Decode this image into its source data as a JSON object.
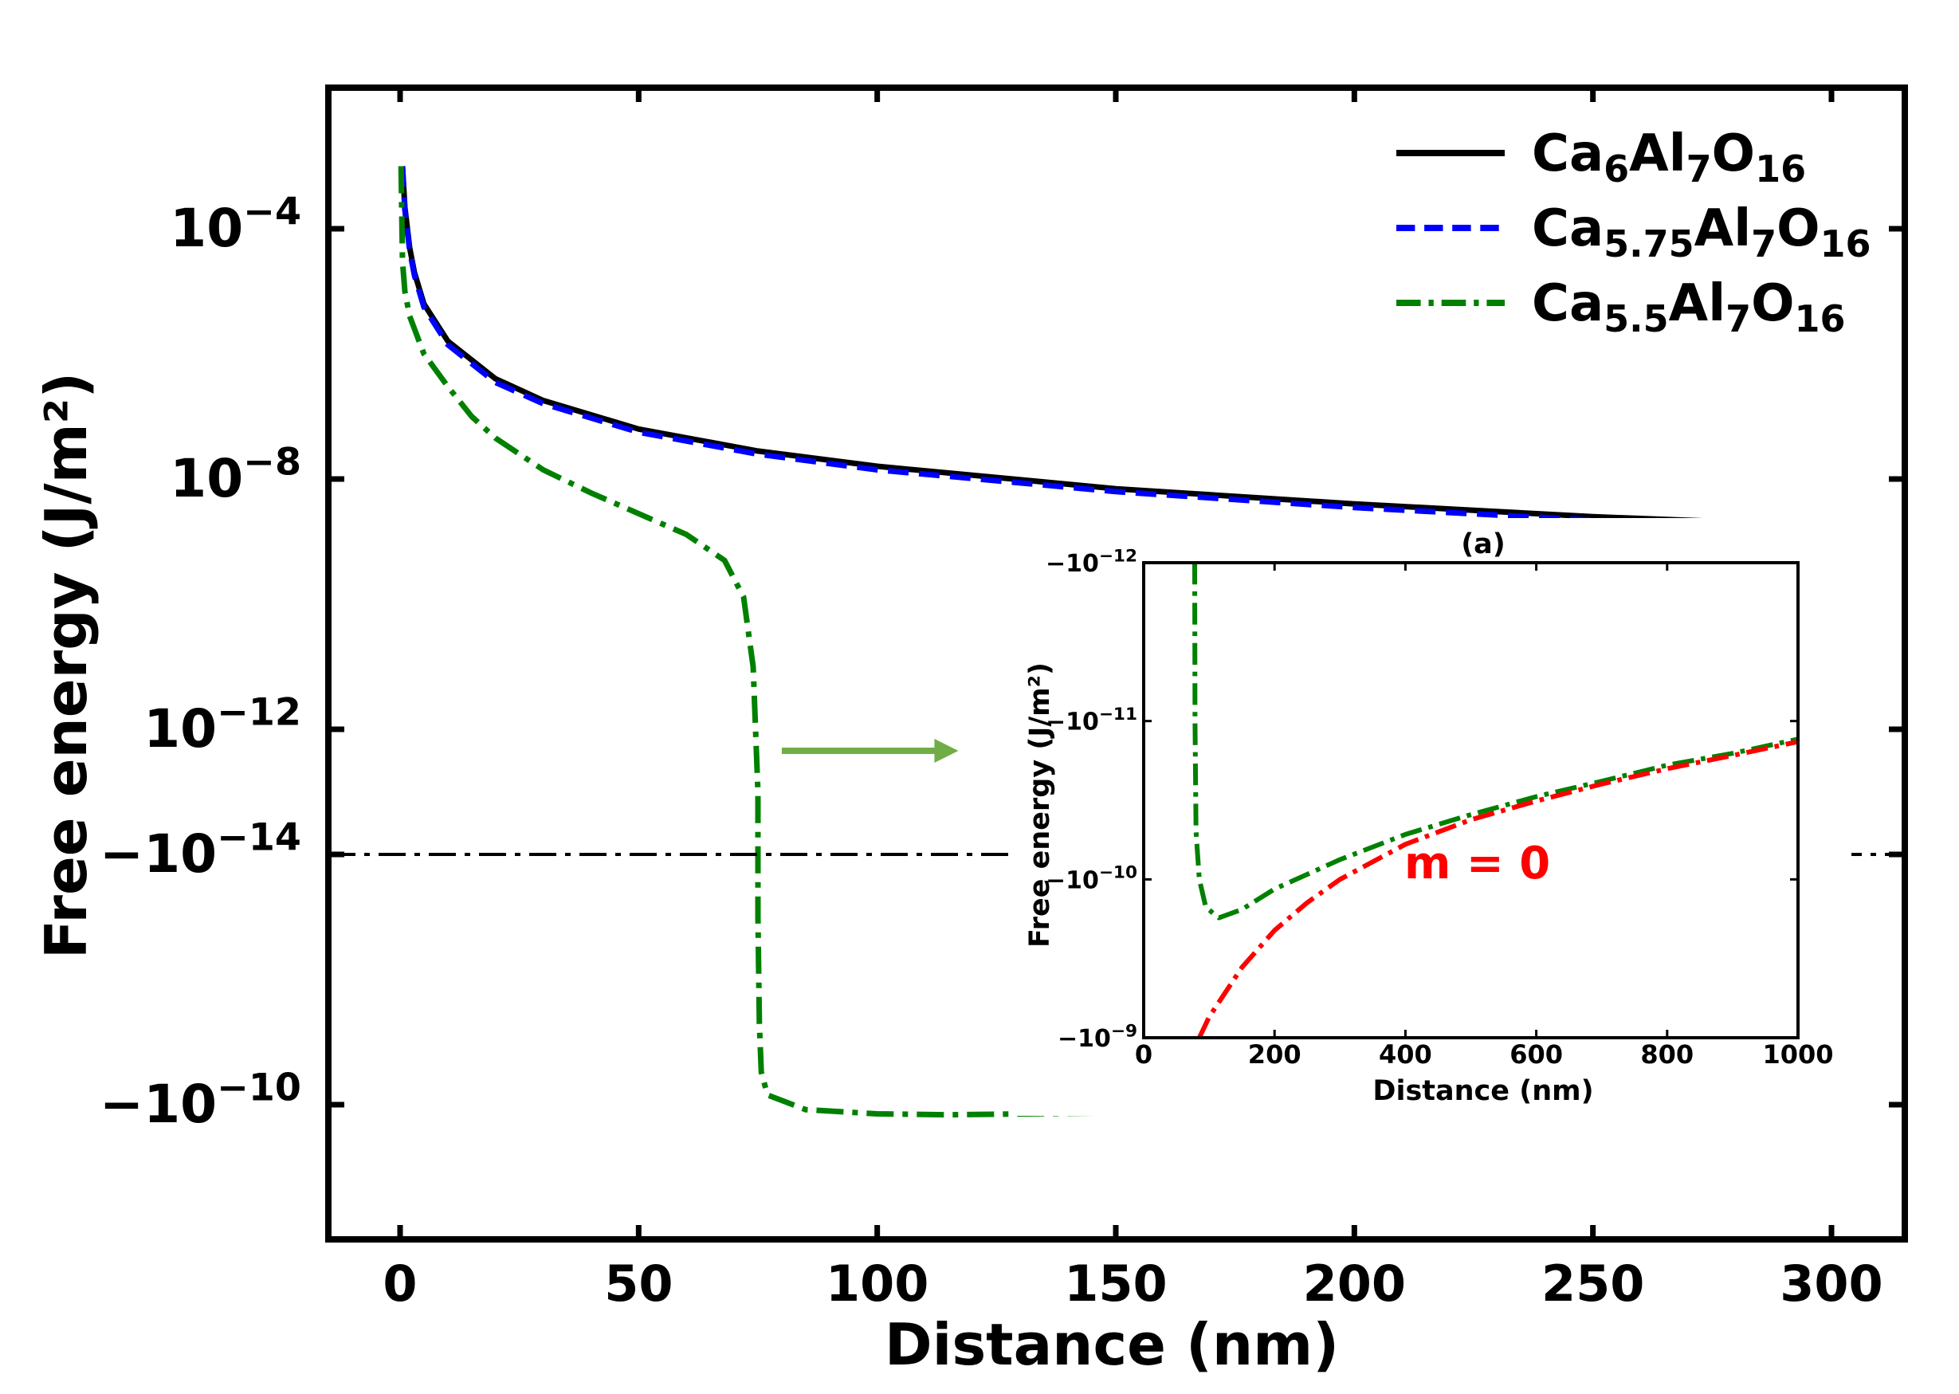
{
  "chart_data": [
    {
      "type": "line",
      "title": "",
      "xlabel": "Distance (nm)",
      "ylabel": "Free energy (J/m²)",
      "yscale": "symlog",
      "xlim": [
        -15,
        305
      ],
      "xticks": [
        {
          "value": 0,
          "label": "0"
        },
        {
          "value": 50,
          "label": "50"
        },
        {
          "value": 100,
          "label": "100"
        },
        {
          "value": 150,
          "label": "150"
        },
        {
          "value": 200,
          "label": "200"
        },
        {
          "value": 250,
          "label": "250"
        },
        {
          "value": 300,
          "label": "300"
        }
      ],
      "yticks": [
        {
          "value": 0.0001,
          "base": "10",
          "exp": "−4",
          "neg": false
        },
        {
          "value": 1e-08,
          "base": "10",
          "exp": "−8",
          "neg": false
        },
        {
          "value": 1e-12,
          "base": "10",
          "exp": "−12",
          "neg": false
        },
        {
          "value": -1e-14,
          "base": "−10",
          "exp": "−14",
          "neg": true
        },
        {
          "value": -1e-10,
          "base": "−10",
          "exp": "−10",
          "neg": true
        }
      ],
      "reference_line": {
        "value": 0,
        "style": "dash-dot",
        "color": "#000000"
      },
      "annotation_arrow": {
        "from": [
          80,
          0.001
        ],
        "to": [
          117,
          0.001
        ],
        "color": "#70AD47"
      },
      "legend": {
        "placement": "top-right",
        "entries": [
          {
            "base": "Ca",
            "s1": "6",
            "mid": "Al",
            "s2": "7",
            "end": "O",
            "s3": "16",
            "style": "solid",
            "color": "#000000"
          },
          {
            "base": "Ca",
            "s1": "5.75",
            "mid": "Al",
            "s2": "7",
            "end": "O",
            "s3": "16",
            "style": "dashed",
            "color": "#0000FF"
          },
          {
            "base": "Ca",
            "s1": "5.5",
            "mid": "Al",
            "s2": "7",
            "end": "O",
            "s3": "16",
            "style": "dash-dot",
            "color": "#008000"
          }
        ]
      },
      "series": [
        {
          "name": "Ca6Al7O16",
          "color": "#000000",
          "style": "solid",
          "points": [
            [
              0.5,
              0.001
            ],
            [
              1,
              0.00022
            ],
            [
              2,
              5e-05
            ],
            [
              3,
              2e-05
            ],
            [
              5,
              6.3e-06
            ],
            [
              10,
              1.6e-06
            ],
            [
              20,
              4e-07
            ],
            [
              30,
              1.8e-07
            ],
            [
              50,
              6.3e-08
            ],
            [
              75,
              2.8e-08
            ],
            [
              100,
              1.6e-08
            ],
            [
              150,
              7e-09
            ],
            [
              200,
              4e-09
            ],
            [
              250,
              2.5e-09
            ],
            [
              300,
              1.8e-09
            ]
          ]
        },
        {
          "name": "Ca5.75Al7O16",
          "color": "#0000FF",
          "style": "dashed",
          "points": [
            [
              0.5,
              0.001
            ],
            [
              1,
              0.0002
            ],
            [
              2,
              4.5e-05
            ],
            [
              3,
              1.8e-05
            ],
            [
              5,
              5.6e-06
            ],
            [
              10,
              1.4e-06
            ],
            [
              20,
              3.5e-07
            ],
            [
              30,
              1.6e-07
            ],
            [
              50,
              5.6e-08
            ],
            [
              75,
              2.5e-08
            ],
            [
              100,
              1.4e-08
            ],
            [
              150,
              6.3e-09
            ],
            [
              200,
              3.5e-09
            ],
            [
              250,
              2.2e-09
            ],
            [
              300,
              1.6e-09
            ]
          ]
        },
        {
          "name": "Ca5.5Al7O16",
          "color": "#008000",
          "style": "dash-dot",
          "points": [
            [
              0.2,
              0.001
            ],
            [
              0.5,
              3e-05
            ],
            [
              1,
              1e-05
            ],
            [
              2,
              4e-06
            ],
            [
              5,
              1e-06
            ],
            [
              10,
              3e-07
            ],
            [
              15,
              1e-07
            ],
            [
              20,
              4.5e-08
            ],
            [
              30,
              1.4e-08
            ],
            [
              40,
              6e-09
            ],
            [
              50,
              2.8e-09
            ],
            [
              60,
              1.3e-09
            ],
            [
              68,
              5e-10
            ],
            [
              72,
              1.3e-10
            ],
            [
              74,
              1e-11
            ],
            [
              75,
              1e-13
            ],
            [
              75,
              0
            ],
            [
              75,
              -1e-13
            ],
            [
              75.3,
              -5e-12
            ],
            [
              75.7,
              -3e-11
            ],
            [
              77,
              -7e-11
            ],
            [
              85,
              -1.2e-10
            ],
            [
              100,
              -1.4e-10
            ],
            [
              115,
              -1.45e-10
            ],
            [
              150,
              -1.35e-10
            ],
            [
              200,
              -1.15e-10
            ],
            [
              250,
              -1e-10
            ],
            [
              300,
              -9e-11
            ]
          ]
        }
      ]
    },
    {
      "type": "line",
      "title": "(a)",
      "xlabel": "Distance (nm)",
      "ylabel": "Free energy (J/m²)",
      "yscale": "log-negative",
      "xlim": [
        0,
        1000
      ],
      "ylim": [
        -1e-12,
        -1e-09
      ],
      "xticks": [
        {
          "value": 0,
          "label": "0"
        },
        {
          "value": 200,
          "label": "200"
        },
        {
          "value": 400,
          "label": "400"
        },
        {
          "value": 600,
          "label": "600"
        },
        {
          "value": 800,
          "label": "800"
        },
        {
          "value": 1000,
          "label": "1000"
        }
      ],
      "yticks": [
        {
          "value": -1e-12,
          "base": "−10",
          "exp": "−12"
        },
        {
          "value": -1e-11,
          "base": "−10",
          "exp": "−11"
        },
        {
          "value": -1e-10,
          "base": "−10",
          "exp": "−10"
        },
        {
          "value": -1e-09,
          "base": "−10",
          "exp": "−9"
        }
      ],
      "annotations": [
        {
          "text": "m = 0",
          "x": 500,
          "y": -1e-10,
          "color": "#FF0000"
        }
      ],
      "series": [
        {
          "name": "Ca5.5Al7O16",
          "color": "#008000",
          "style": "dash-dot",
          "points": [
            [
              78,
              -1e-12
            ],
            [
              78.5,
              -1e-11
            ],
            [
              80,
              -5e-11
            ],
            [
              85,
              -1e-10
            ],
            [
              95,
              -1.5e-10
            ],
            [
              115,
              -1.75e-10
            ],
            [
              150,
              -1.55e-10
            ],
            [
              200,
              -1.15e-10
            ],
            [
              300,
              -7.5e-11
            ],
            [
              400,
              -5.2e-11
            ],
            [
              500,
              -3.9e-11
            ],
            [
              600,
              -3e-11
            ],
            [
              700,
              -2.4e-11
            ],
            [
              800,
              -1.9e-11
            ],
            [
              900,
              -1.6e-11
            ],
            [
              1000,
              -1.3e-11
            ]
          ]
        },
        {
          "name": "m = 0",
          "color": "#FF0000",
          "style": "dash-dot",
          "points": [
            [
              85,
              -1e-09
            ],
            [
              100,
              -7.4e-10
            ],
            [
              150,
              -3.6e-10
            ],
            [
              200,
              -2.1e-10
            ],
            [
              250,
              -1.4e-10
            ],
            [
              300,
              -1e-10
            ],
            [
              400,
              -6e-11
            ],
            [
              500,
              -4.2e-11
            ],
            [
              600,
              -3.2e-11
            ],
            [
              700,
              -2.5e-11
            ],
            [
              800,
              -2e-11
            ],
            [
              900,
              -1.65e-11
            ],
            [
              1000,
              -1.35e-11
            ]
          ]
        }
      ]
    }
  ]
}
